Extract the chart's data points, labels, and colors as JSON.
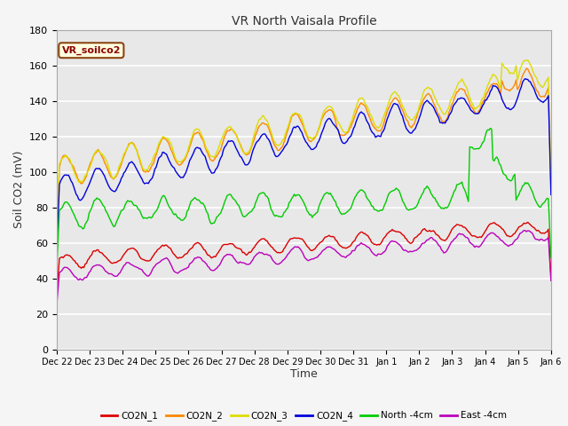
{
  "title": "VR North Vaisala Profile",
  "ylabel": "Soil CO2 (mV)",
  "xlabel": "Time",
  "annotation": "VR_soilco2",
  "ylim": [
    0,
    180
  ],
  "yticks": [
    0,
    20,
    40,
    60,
    80,
    100,
    120,
    140,
    160,
    180
  ],
  "xtick_labels": [
    "Dec 22",
    "Dec 23",
    "Dec 24",
    "Dec 25",
    "Dec 26",
    "Dec 27",
    "Dec 28",
    "Dec 29",
    "Dec 30",
    "Dec 31",
    "Jan 1",
    "Jan 2",
    "Jan 3",
    "Jan 4",
    "Jan 5",
    "Jan 6"
  ],
  "colors": {
    "CO2N_1": "#dd0000",
    "CO2N_2": "#ff8800",
    "CO2N_3": "#dddd00",
    "CO2N_4": "#0000dd",
    "North_4cm": "#00cc00",
    "East_4cm": "#bb00bb"
  },
  "legend_labels": [
    "CO2N_1",
    "CO2N_2",
    "CO2N_3",
    "CO2N_4",
    "North -4cm",
    "East -4cm"
  ],
  "bg_color": "#e8e8e8",
  "grid_color": "#ffffff",
  "linewidth": 1.0
}
